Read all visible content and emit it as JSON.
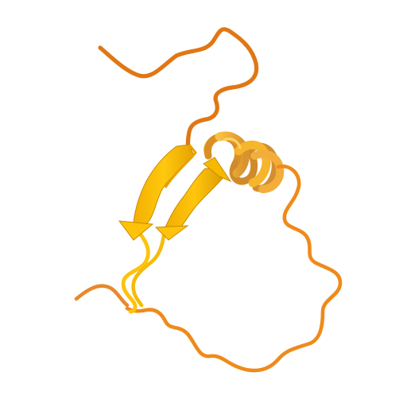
{
  "scene": {
    "subject": "protein-ribbon-structure",
    "background_color": "#ffffff",
    "colors": {
      "coil_dark": "#d9610d",
      "coil_mid": "#ef8a1a",
      "coil_light": "#f2a23a",
      "strand_main": "#ffc20a",
      "strand_shade": "#e0a000",
      "strand_edge": "#c98a00",
      "helix_main": "#f6b52b",
      "helix_shade": "#d6902a",
      "helix_light": "#f9c45a"
    },
    "secondary_structure": {
      "beta_strands": 2,
      "alpha_helices": 1,
      "coil_segments": 4
    }
  }
}
